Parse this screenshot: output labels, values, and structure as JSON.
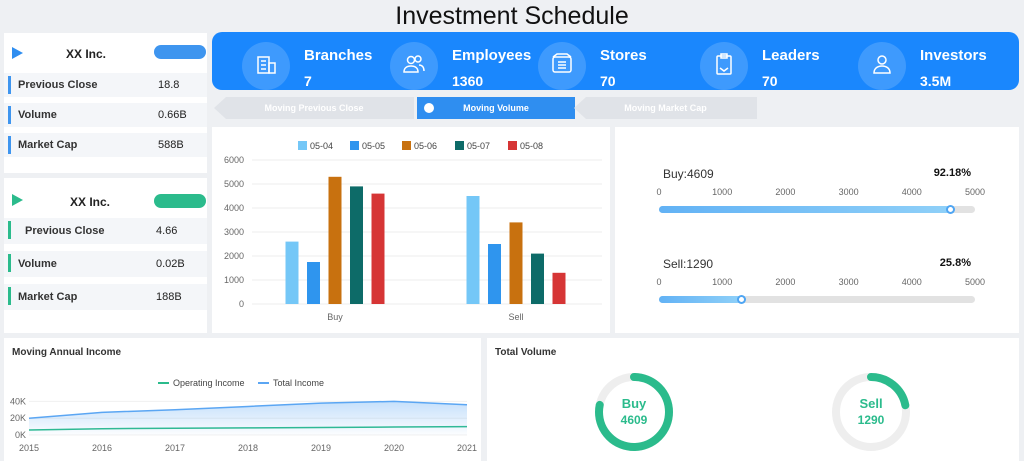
{
  "title": "Investment Schedule",
  "colors": {
    "kpi_bg": "#1a87fd",
    "blue": "#2f8ef0",
    "green": "#2bbb8c"
  },
  "stocks": [
    {
      "name": "XX Inc.",
      "badge": "",
      "rows": [
        {
          "label": "Previous Close",
          "value": "18.8"
        },
        {
          "label": "Volume",
          "value": "0.66B"
        },
        {
          "label": "Market Cap",
          "value": "588B"
        }
      ]
    },
    {
      "name": "XX Inc.",
      "badge": "",
      "rows": [
        {
          "label": "Previous Close",
          "value": "4.66"
        },
        {
          "label": "Volume",
          "value": "0.02B"
        },
        {
          "label": "Market Cap",
          "value": "188B"
        }
      ]
    }
  ],
  "kpis": [
    {
      "label": "Branches",
      "value": "7",
      "icon": "building-icon"
    },
    {
      "label": "Employees",
      "value": "1360",
      "icon": "people-icon"
    },
    {
      "label": "Stores",
      "value": "70",
      "icon": "store-list-icon"
    },
    {
      "label": "Leaders",
      "value": "70",
      "icon": "clipboard-icon"
    },
    {
      "label": "Investors",
      "value": "3.5M",
      "icon": "users-icon"
    }
  ],
  "tabs": [
    {
      "label": "Moving Previous Close"
    },
    {
      "label": "Moving Volume",
      "active": true
    },
    {
      "label": "Moving Market Cap"
    }
  ],
  "progress": [
    {
      "label": "Buy:4609",
      "pct": "92.18%",
      "fraction": 0.9218
    },
    {
      "label": "Sell:1290",
      "pct": "25.8%",
      "fraction": 0.258
    }
  ],
  "progress_ticks": [
    "0",
    "1000",
    "2000",
    "3000",
    "4000",
    "5000"
  ],
  "panels": {
    "line_title": "Moving Annual Income",
    "total_title": "Total Volume"
  },
  "gauges": [
    {
      "label": "Buy",
      "value": "4609",
      "fraction": 0.7813
    },
    {
      "label": "Sell",
      "value": "1290",
      "fraction": 0.2187
    }
  ],
  "chart_data": [
    {
      "type": "bar",
      "categories": [
        "Buy",
        "Sell"
      ],
      "series": [
        {
          "name": "05-04",
          "color": "#74c7f7",
          "values": [
            2600,
            4500
          ]
        },
        {
          "name": "05-05",
          "color": "#2f95ee",
          "values": [
            1750,
            2500
          ]
        },
        {
          "name": "05-06",
          "color": "#c8710f",
          "values": [
            5300,
            3400
          ]
        },
        {
          "name": "05-07",
          "color": "#0d6b68",
          "values": [
            4900,
            2100
          ]
        },
        {
          "name": "05-08",
          "color": "#d63535",
          "values": [
            4600,
            1300
          ]
        }
      ],
      "yticks": [
        "0",
        "1000",
        "2000",
        "3000",
        "4000",
        "5000",
        "6000"
      ],
      "ylim": [
        0,
        6000
      ],
      "legend": "top",
      "grid": true
    },
    {
      "type": "area",
      "x": [
        "2015",
        "2016",
        "2017",
        "2018",
        "2019",
        "2020",
        "2021"
      ],
      "series": [
        {
          "name": "Operating Income",
          "color": "#2bbb8c",
          "values": [
            6000,
            7500,
            8000,
            8500,
            9000,
            9500,
            10000
          ]
        },
        {
          "name": "Total Income",
          "color": "#5ba6f3",
          "values": [
            20000,
            27000,
            30000,
            34000,
            38000,
            40000,
            36000
          ]
        }
      ],
      "yticks": [
        "0K",
        "20K",
        "40K"
      ],
      "ylim": [
        0,
        50000
      ],
      "legend": "top"
    }
  ]
}
